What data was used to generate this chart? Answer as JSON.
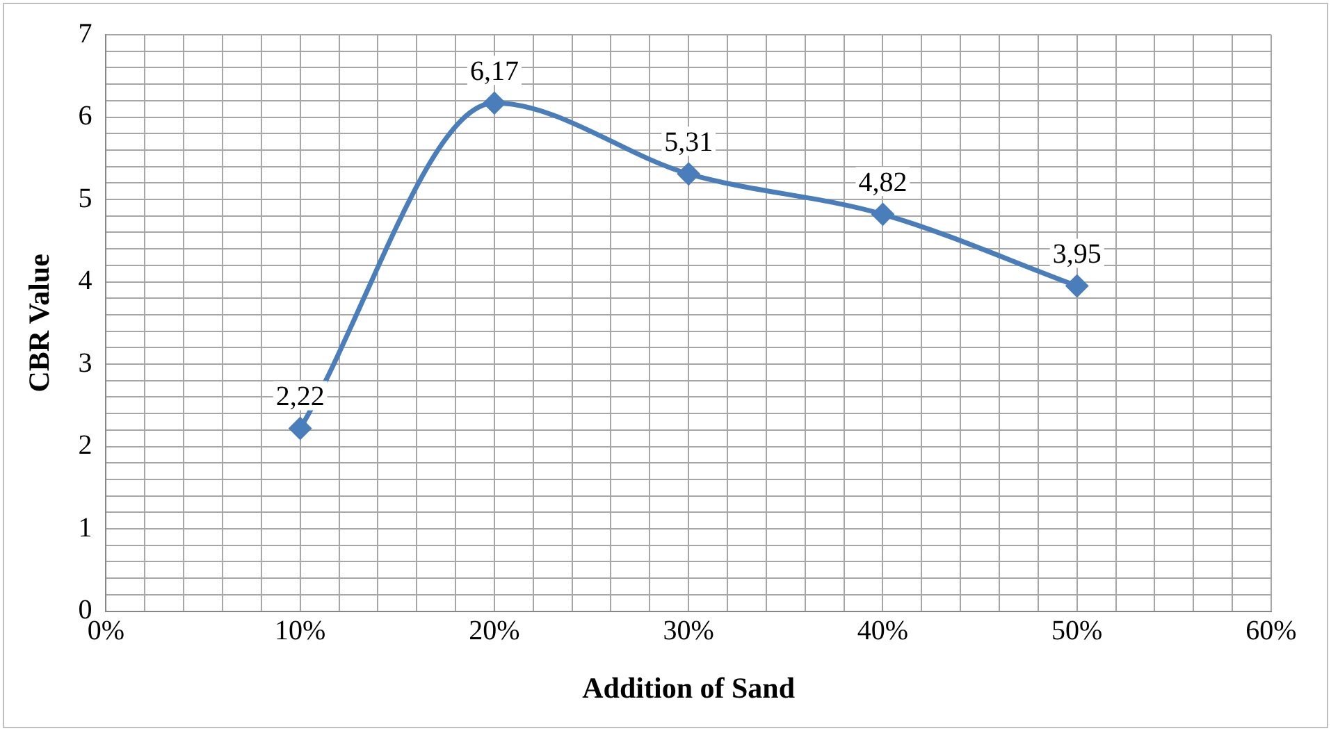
{
  "chart_data": {
    "type": "line",
    "xlabel": "Addition of Sand",
    "ylabel": "CBR Value",
    "x": [
      10,
      20,
      30,
      40,
      50
    ],
    "series": [
      {
        "color": "#4a7ebb",
        "values": [
          2.22,
          6.17,
          5.31,
          4.82,
          3.95
        ],
        "value_labels": [
          "2,22",
          "6,17",
          "5,31",
          "4,82",
          "3,95"
        ]
      }
    ],
    "xlim": [
      0,
      60
    ],
    "xticks": [
      {
        "value": 0,
        "label": "0%"
      },
      {
        "value": 2,
        "label": null
      },
      {
        "value": 4,
        "label": null
      },
      {
        "value": 6,
        "label": null
      },
      {
        "value": 8,
        "label": null
      },
      {
        "value": 10,
        "label": "10%"
      },
      {
        "value": 12,
        "label": null
      },
      {
        "value": 14,
        "label": null
      },
      {
        "value": 16,
        "label": null
      },
      {
        "value": 18,
        "label": null
      },
      {
        "value": 20,
        "label": "20%"
      },
      {
        "value": 22,
        "label": null
      },
      {
        "value": 24,
        "label": null
      },
      {
        "value": 26,
        "label": null
      },
      {
        "value": 28,
        "label": null
      },
      {
        "value": 30,
        "label": "30%"
      },
      {
        "value": 32,
        "label": null
      },
      {
        "value": 34,
        "label": null
      },
      {
        "value": 36,
        "label": null
      },
      {
        "value": 38,
        "label": null
      },
      {
        "value": 40,
        "label": "40%"
      },
      {
        "value": 42,
        "label": null
      },
      {
        "value": 44,
        "label": null
      },
      {
        "value": 46,
        "label": null
      },
      {
        "value": 48,
        "label": null
      },
      {
        "value": 50,
        "label": "50%"
      },
      {
        "value": 52,
        "label": null
      },
      {
        "value": 54,
        "label": null
      },
      {
        "value": 56,
        "label": null
      },
      {
        "value": 58,
        "label": null
      },
      {
        "value": 60,
        "label": "60%"
      }
    ],
    "ylim": [
      0,
      7
    ],
    "yticks": [
      0,
      {
        "value": 0.2,
        "label": null
      },
      {
        "value": 0.4,
        "label": null
      },
      {
        "value": 0.6,
        "label": null
      },
      {
        "value": 0.8,
        "label": null
      },
      1,
      {
        "value": 1.2,
        "label": null
      },
      {
        "value": 1.4,
        "label": null
      },
      {
        "value": 1.6,
        "label": null
      },
      {
        "value": 1.8,
        "label": null
      },
      2,
      {
        "value": 2.2,
        "label": null
      },
      {
        "value": 2.4,
        "label": null
      },
      {
        "value": 2.6,
        "label": null
      },
      {
        "value": 2.8,
        "label": null
      },
      3,
      {
        "value": 3.2,
        "label": null
      },
      {
        "value": 3.4,
        "label": null
      },
      {
        "value": 3.6,
        "label": null
      },
      {
        "value": 3.8,
        "label": null
      },
      4,
      {
        "value": 4.2,
        "label": null
      },
      {
        "value": 4.4,
        "label": null
      },
      {
        "value": 4.6,
        "label": null
      },
      {
        "value": 4.8,
        "label": null
      },
      5,
      {
        "value": 5.2,
        "label": null
      },
      {
        "value": 5.4,
        "label": null
      },
      {
        "value": 5.6,
        "label": null
      },
      {
        "value": 5.8,
        "label": null
      },
      6,
      {
        "value": 6.2,
        "label": null
      },
      {
        "value": 6.4,
        "label": null
      },
      {
        "value": 6.6,
        "label": null
      },
      {
        "value": 6.8,
        "label": null
      },
      7
    ],
    "grid": true,
    "legend": false,
    "marker": "diamond",
    "line_style": "solid"
  }
}
